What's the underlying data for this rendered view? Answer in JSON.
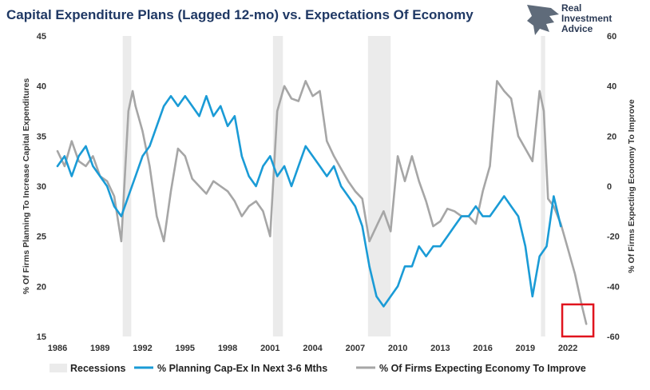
{
  "chart_data": {
    "type": "line",
    "title": "Capital Expenditure Plans (Lagged 12-mo) vs. Expectations Of Economy",
    "ylabel_left": "% Of Firms Planning To Increase Capital Expenditures",
    "ylabel_right": "% Of Firms Expecting Economy To Improve",
    "xlim": [
      1986,
      2024.3
    ],
    "ylim_left": [
      15,
      45
    ],
    "ylim_right": [
      -60,
      60
    ],
    "x_ticks": [
      "1986",
      "1989",
      "1992",
      "1995",
      "1998",
      "2001",
      "2004",
      "2007",
      "2010",
      "2013",
      "2016",
      "2019",
      "2022"
    ],
    "y_left_ticks": [
      "15",
      "20",
      "25",
      "30",
      "35",
      "40",
      "45"
    ],
    "y_right_ticks": [
      "-60",
      "-40",
      "-20",
      "0",
      "20",
      "40",
      "60"
    ],
    "recessions": [
      [
        1990.6,
        1991.2
      ],
      [
        2001.2,
        2001.9
      ],
      [
        2007.9,
        2009.5
      ],
      [
        2020.1,
        2020.4
      ]
    ],
    "highlight_box": {
      "x": [
        2021.6,
        2023.8
      ],
      "y_left": [
        15,
        18.2
      ]
    },
    "series": [
      {
        "name": "% Planning Cap-Ex In Next 3-6 Mths",
        "axis": "left",
        "color": "#1a9bd6",
        "x": [
          1986.0,
          1986.5,
          1987.0,
          1987.5,
          1988.0,
          1988.5,
          1989.0,
          1989.5,
          1990.0,
          1990.5,
          1991.0,
          1991.5,
          1992.0,
          1992.5,
          1993.0,
          1993.5,
          1994.0,
          1994.5,
          1995.0,
          1995.5,
          1996.0,
          1996.5,
          1997.0,
          1997.5,
          1998.0,
          1998.5,
          1999.0,
          1999.5,
          2000.0,
          2000.5,
          2001.0,
          2001.5,
          2002.0,
          2002.5,
          2003.0,
          2003.5,
          2004.0,
          2004.5,
          2005.0,
          2005.5,
          2006.0,
          2006.5,
          2007.0,
          2007.5,
          2008.0,
          2008.5,
          2009.0,
          2009.5,
          2010.0,
          2010.5,
          2011.0,
          2011.5,
          2012.0,
          2012.5,
          2013.0,
          2013.5,
          2014.0,
          2014.5,
          2015.0,
          2015.5,
          2016.0,
          2016.5,
          2017.0,
          2017.5,
          2018.0,
          2018.5,
          2019.0,
          2019.5,
          2020.0,
          2020.5,
          2021.0,
          2021.5
        ],
        "y": [
          32,
          33,
          31,
          33,
          34,
          32,
          31,
          30,
          28,
          27,
          29,
          31,
          33,
          34,
          36,
          38,
          39,
          38,
          39,
          38,
          37,
          39,
          37,
          38,
          36,
          37,
          33,
          31,
          30,
          32,
          33,
          31,
          32,
          30,
          32,
          34,
          33,
          32,
          31,
          32,
          30,
          29,
          28,
          26,
          22,
          19,
          18,
          19,
          20,
          22,
          22,
          24,
          23,
          24,
          24,
          25,
          26,
          27,
          27,
          28,
          27,
          27,
          28,
          29,
          28,
          27,
          24,
          19,
          23,
          24,
          29,
          26
        ]
      },
      {
        "name": "% Of Firms Expecting Economy To Improve",
        "axis": "right",
        "color": "#a6a6a6",
        "x": [
          1986.0,
          1986.5,
          1987.0,
          1987.5,
          1988.0,
          1988.5,
          1989.0,
          1989.5,
          1990.0,
          1990.5,
          1991.0,
          1991.3,
          1991.5,
          1992.0,
          1992.5,
          1993.0,
          1993.5,
          1994.0,
          1994.5,
          1995.0,
          1995.5,
          1996.0,
          1996.5,
          1997.0,
          1997.5,
          1998.0,
          1998.5,
          1999.0,
          1999.5,
          2000.0,
          2000.5,
          2001.0,
          2001.5,
          2002.0,
          2002.5,
          2003.0,
          2003.5,
          2004.0,
          2004.5,
          2005.0,
          2005.5,
          2006.0,
          2006.5,
          2007.0,
          2007.5,
          2008.0,
          2008.5,
          2009.0,
          2009.5,
          2010.0,
          2010.5,
          2011.0,
          2011.5,
          2012.0,
          2012.5,
          2013.0,
          2013.5,
          2014.0,
          2014.5,
          2015.0,
          2015.5,
          2016.0,
          2016.5,
          2017.0,
          2017.5,
          2018.0,
          2018.5,
          2019.0,
          2019.5,
          2020.0,
          2020.3,
          2020.6,
          2021.0,
          2021.5,
          2022.0,
          2022.5,
          2023.0,
          2023.3
        ],
        "y": [
          14,
          8,
          18,
          10,
          8,
          12,
          4,
          2,
          -4,
          -22,
          30,
          38,
          32,
          22,
          8,
          -12,
          -22,
          -2,
          15,
          12,
          3,
          0,
          -3,
          2,
          0,
          -2,
          -6,
          -12,
          -8,
          -6,
          -10,
          -20,
          30,
          40,
          35,
          34,
          42,
          36,
          38,
          18,
          12,
          7,
          2,
          -2,
          -5,
          -22,
          -16,
          -10,
          -18,
          12,
          2,
          12,
          2,
          -6,
          -16,
          -14,
          -9,
          -10,
          -12,
          -12,
          -15,
          -2,
          8,
          42,
          38,
          35,
          20,
          15,
          10,
          38,
          30,
          -5,
          -8,
          -15,
          -25,
          -35,
          -48,
          -55
        ]
      }
    ]
  },
  "legend": {
    "recessions_label": "Recessions",
    "capex_label": "% Planning Cap-Ex In Next 3-6 Mths",
    "expect_label": "% Of Firms Expecting Economy To Improve"
  },
  "logo": {
    "line1": "Real",
    "line2": "Investment",
    "line3": "Advice"
  },
  "colors": {
    "recession": "#ebebeb",
    "capex": "#1a9bd6",
    "expect": "#a6a6a6",
    "highlight": "#e0141e",
    "title": "#1f3864"
  }
}
